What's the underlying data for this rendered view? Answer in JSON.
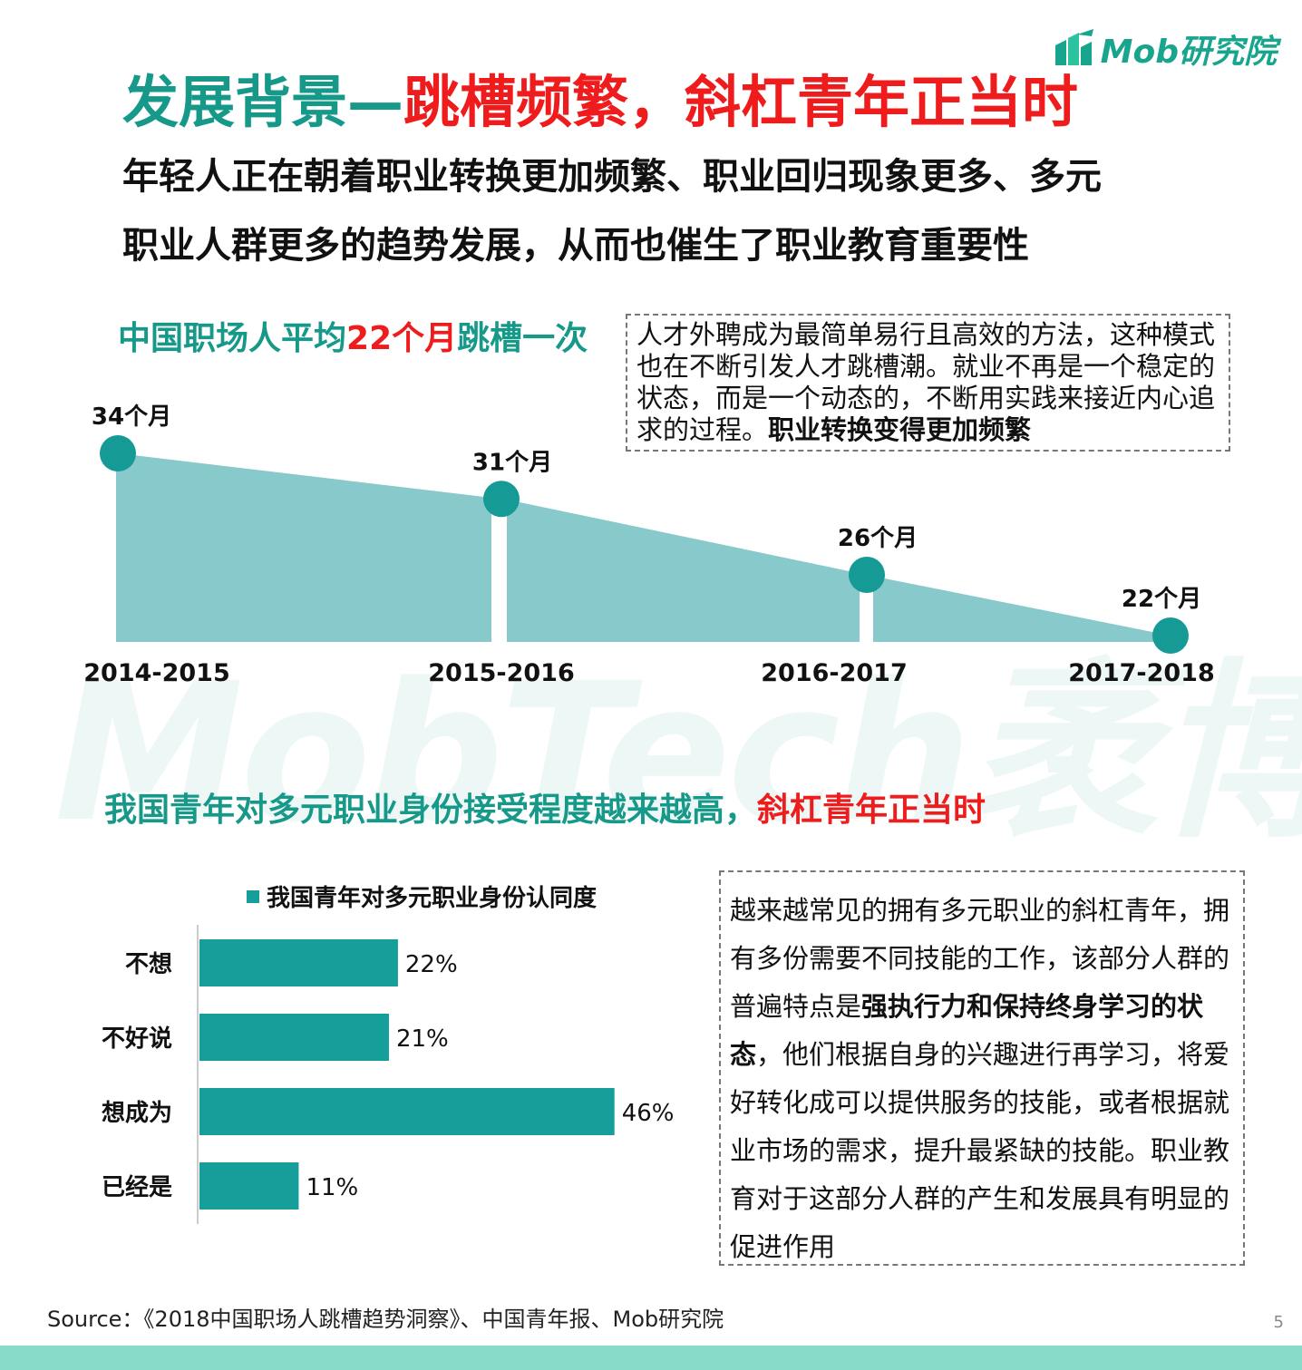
{
  "brand": {
    "logo_text": "Mob研究院",
    "watermark": "MobTech袤博"
  },
  "title": {
    "part1": "发展背景—",
    "part2": "跳槽频繁，斜杠青年正当时"
  },
  "subtitle": {
    "line1": "年轻人正在朝着职业转换更加频繁、职业回归现象更多、多元",
    "line2": "职业人群更多的趋势发展，从而也催生了职业教育重要性"
  },
  "section1": {
    "title_prefix": "中国职场人平均",
    "title_highlight": "22个月",
    "title_suffix": "跳槽一次",
    "box_text": "人才外聘成为最简单易行且高效的方法，这种模式也在不断引发人才跳槽潮。就业不再是一个稳定的状态，而是一个动态的，不断用实践来接近内心追求的过程。",
    "box_bold": "职业转换变得更加频繁"
  },
  "section2": {
    "title_prefix": "我国青年对多元职业身份接受程度越来越高，",
    "title_highlight": "斜杠青年正当时",
    "box_text_1": "越来越常见的拥有多元职业的斜杠青年，拥有多份需要不同技能的工作，该部分人群的普遍特点是",
    "box_bold": "强执行力和保持终身学习的状态",
    "box_text_2": "，他们根据自身的兴趣进行再学习，将爱好转化成可以提供服务的技能，或者根据就业市场的需求，提升最紧缺的技能。职业教育对于这部分人群的产生和发展具有明显的促进作用"
  },
  "chart_data": [
    {
      "type": "area",
      "categories": [
        "2014-2015",
        "2015-2016",
        "2016-2017",
        "2017-2018"
      ],
      "values": [
        34,
        31,
        26,
        22
      ],
      "data_labels": [
        "34个月",
        "31个月",
        "26个月",
        "22个月"
      ],
      "color": "#88c9cb",
      "marker_color": "#169a96"
    },
    {
      "type": "bar",
      "orientation": "horizontal",
      "legend": "我国青年对多元职业身份认同度",
      "categories": [
        "不想",
        "不好说",
        "想成为",
        "已经是"
      ],
      "values": [
        22,
        21,
        46,
        11
      ],
      "data_labels": [
        "22%",
        "21%",
        "46%",
        "11%"
      ],
      "color": "#169e9b"
    }
  ],
  "source": "Source：《2018中国职场人跳槽趋势洞察》、中国青年报、Mob研究院",
  "page_number": "5"
}
